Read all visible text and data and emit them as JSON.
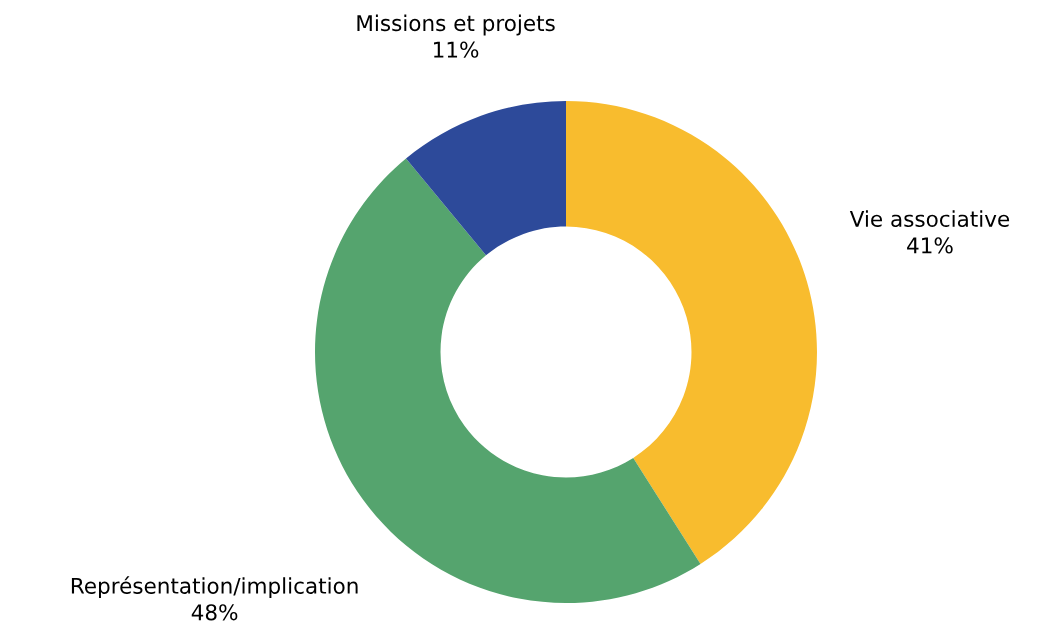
{
  "chart_data": {
    "type": "donut",
    "categories": [
      "Vie associative",
      "Représentation/implication",
      "Missions et projets"
    ],
    "values": [
      41,
      48,
      11
    ],
    "value_labels": [
      "41%",
      "48%",
      "11%"
    ],
    "colors": [
      "#f8bc2e",
      "#55a46e",
      "#2d4a9a"
    ]
  }
}
